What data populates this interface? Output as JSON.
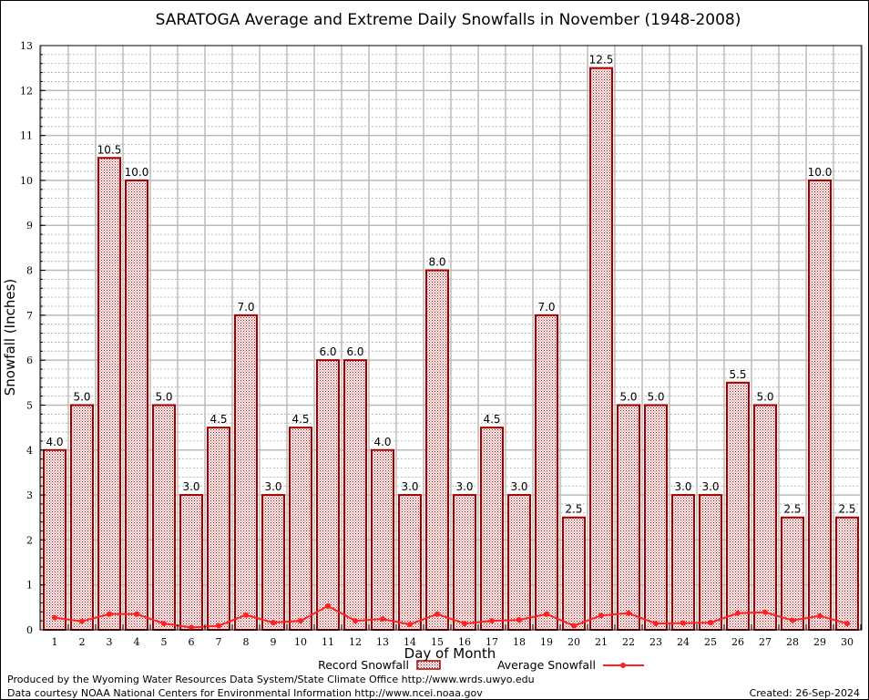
{
  "chart_data": {
    "type": "bar",
    "title": "SARATOGA Average and Extreme Daily Snowfalls in November (1948-2008)",
    "xlabel": "Day of Month",
    "ylabel": "Snowfall (Inches)",
    "ylim": [
      0,
      13
    ],
    "yticks": [
      "0",
      "1",
      "2",
      "3",
      "4",
      "5",
      "6",
      "7",
      "8",
      "9",
      "10",
      "11",
      "12",
      "13"
    ],
    "categories": [
      "1",
      "2",
      "3",
      "4",
      "5",
      "6",
      "7",
      "8",
      "9",
      "10",
      "11",
      "12",
      "13",
      "14",
      "15",
      "16",
      "17",
      "18",
      "19",
      "20",
      "21",
      "22",
      "23",
      "24",
      "25",
      "26",
      "27",
      "28",
      "29",
      "30"
    ],
    "series": [
      {
        "name": "Record Snowfall",
        "type": "bar",
        "color": "#a00000",
        "values": [
          4.0,
          5.0,
          10.5,
          10.0,
          5.0,
          3.0,
          4.5,
          7.0,
          3.0,
          4.5,
          6.0,
          6.0,
          4.0,
          3.0,
          8.0,
          3.0,
          4.5,
          3.0,
          7.0,
          2.5,
          12.5,
          5.0,
          5.0,
          3.0,
          3.0,
          5.5,
          5.0,
          2.5,
          10.0,
          2.5
        ],
        "labels": [
          "4.0",
          "5.0",
          "10.5",
          "10.0",
          "5.0",
          "3.0",
          "4.5",
          "7.0",
          "3.0",
          "4.5",
          "6.0",
          "6.0",
          "4.0",
          "3.0",
          "8.0",
          "3.0",
          "4.5",
          "3.0",
          "7.0",
          "2.5",
          "12.5",
          "5.0",
          "5.0",
          "3.0",
          "3.0",
          "5.5",
          "5.0",
          "2.5",
          "10.0",
          "2.5"
        ]
      },
      {
        "name": "Average Snowfall",
        "type": "line",
        "color": "#ff2020",
        "values": [
          0.27,
          0.19,
          0.35,
          0.35,
          0.14,
          0.05,
          0.09,
          0.33,
          0.16,
          0.2,
          0.53,
          0.2,
          0.24,
          0.12,
          0.35,
          0.14,
          0.2,
          0.22,
          0.35,
          0.09,
          0.32,
          0.37,
          0.14,
          0.15,
          0.16,
          0.37,
          0.39,
          0.21,
          0.31,
          0.14
        ]
      }
    ],
    "grid": true,
    "legend": "bottom-center"
  },
  "footer": {
    "line1": "Produced by the Wyoming Water Resources Data System/State Climate Office http://www.wrds.uwyo.edu",
    "line2": "Data courtesy NOAA National Centers for Environmental Information http://www.ncei.noaa.gov",
    "created": "Created: 26-Sep-2024"
  }
}
